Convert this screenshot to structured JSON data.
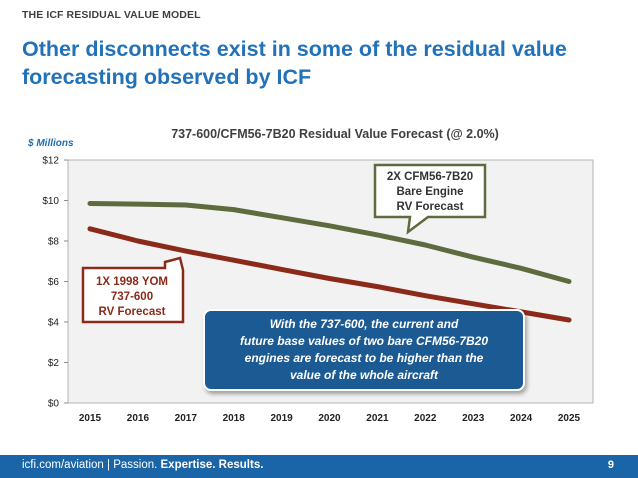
{
  "header": {
    "eyebrow": "THE ICF RESIDUAL VALUE MODEL",
    "headline_line1": "Other disconnects exist in some of the residual value",
    "headline_line2": "forecasting observed by ICF"
  },
  "chart_data": {
    "type": "line",
    "title": "737-600/CFM56-7B20 Residual Value Forecast (@ 2.0%)",
    "ylabel": "$ Millions",
    "xlabel": "",
    "x": [
      2015,
      2016,
      2017,
      2018,
      2019,
      2020,
      2021,
      2022,
      2023,
      2024,
      2025
    ],
    "ylim": [
      0,
      12
    ],
    "y_ticks": [
      0,
      2,
      4,
      6,
      8,
      10,
      12
    ],
    "y_tick_labels": [
      "$0",
      "$2",
      "$4",
      "$6",
      "$8",
      "$10",
      "$12"
    ],
    "grid": false,
    "series": [
      {
        "name": "2X CFM56-7B20 Bare Engine RV Forecast",
        "color": "#5d6b3e",
        "values": [
          9.85,
          9.82,
          9.78,
          9.55,
          9.15,
          8.75,
          8.3,
          7.8,
          7.2,
          6.65,
          6.0
        ]
      },
      {
        "name": "1X 1998 YOM 737-600 RV Forecast",
        "color": "#8c2a1a",
        "values": [
          8.6,
          8.0,
          7.5,
          7.05,
          6.6,
          6.15,
          5.75,
          5.3,
          4.9,
          4.5,
          4.1
        ]
      }
    ],
    "annotations": {
      "engine_label": [
        "2X CFM56-7B20",
        "Bare Engine",
        "RV Forecast"
      ],
      "aircraft_label": [
        "1X 1998 YOM",
        "737-600",
        "RV Forecast"
      ],
      "callout": [
        "With the 737-600, the current and",
        "future base values of two bare CFM56-7B20",
        "engines are forecast to be higher than the",
        "value of the whole aircraft"
      ]
    }
  },
  "colors": {
    "brand_blue": "#2272b9",
    "footer_blue": "#1a65a8",
    "callout_fill": "#1d5a94",
    "plot_bg": "#f2f2f2"
  },
  "footer": {
    "site": "icfi.com/aviation",
    "separator": " | ",
    "tagline_plain": "Passion. ",
    "tagline_bold": "Expertise. Results.",
    "page": "9"
  }
}
